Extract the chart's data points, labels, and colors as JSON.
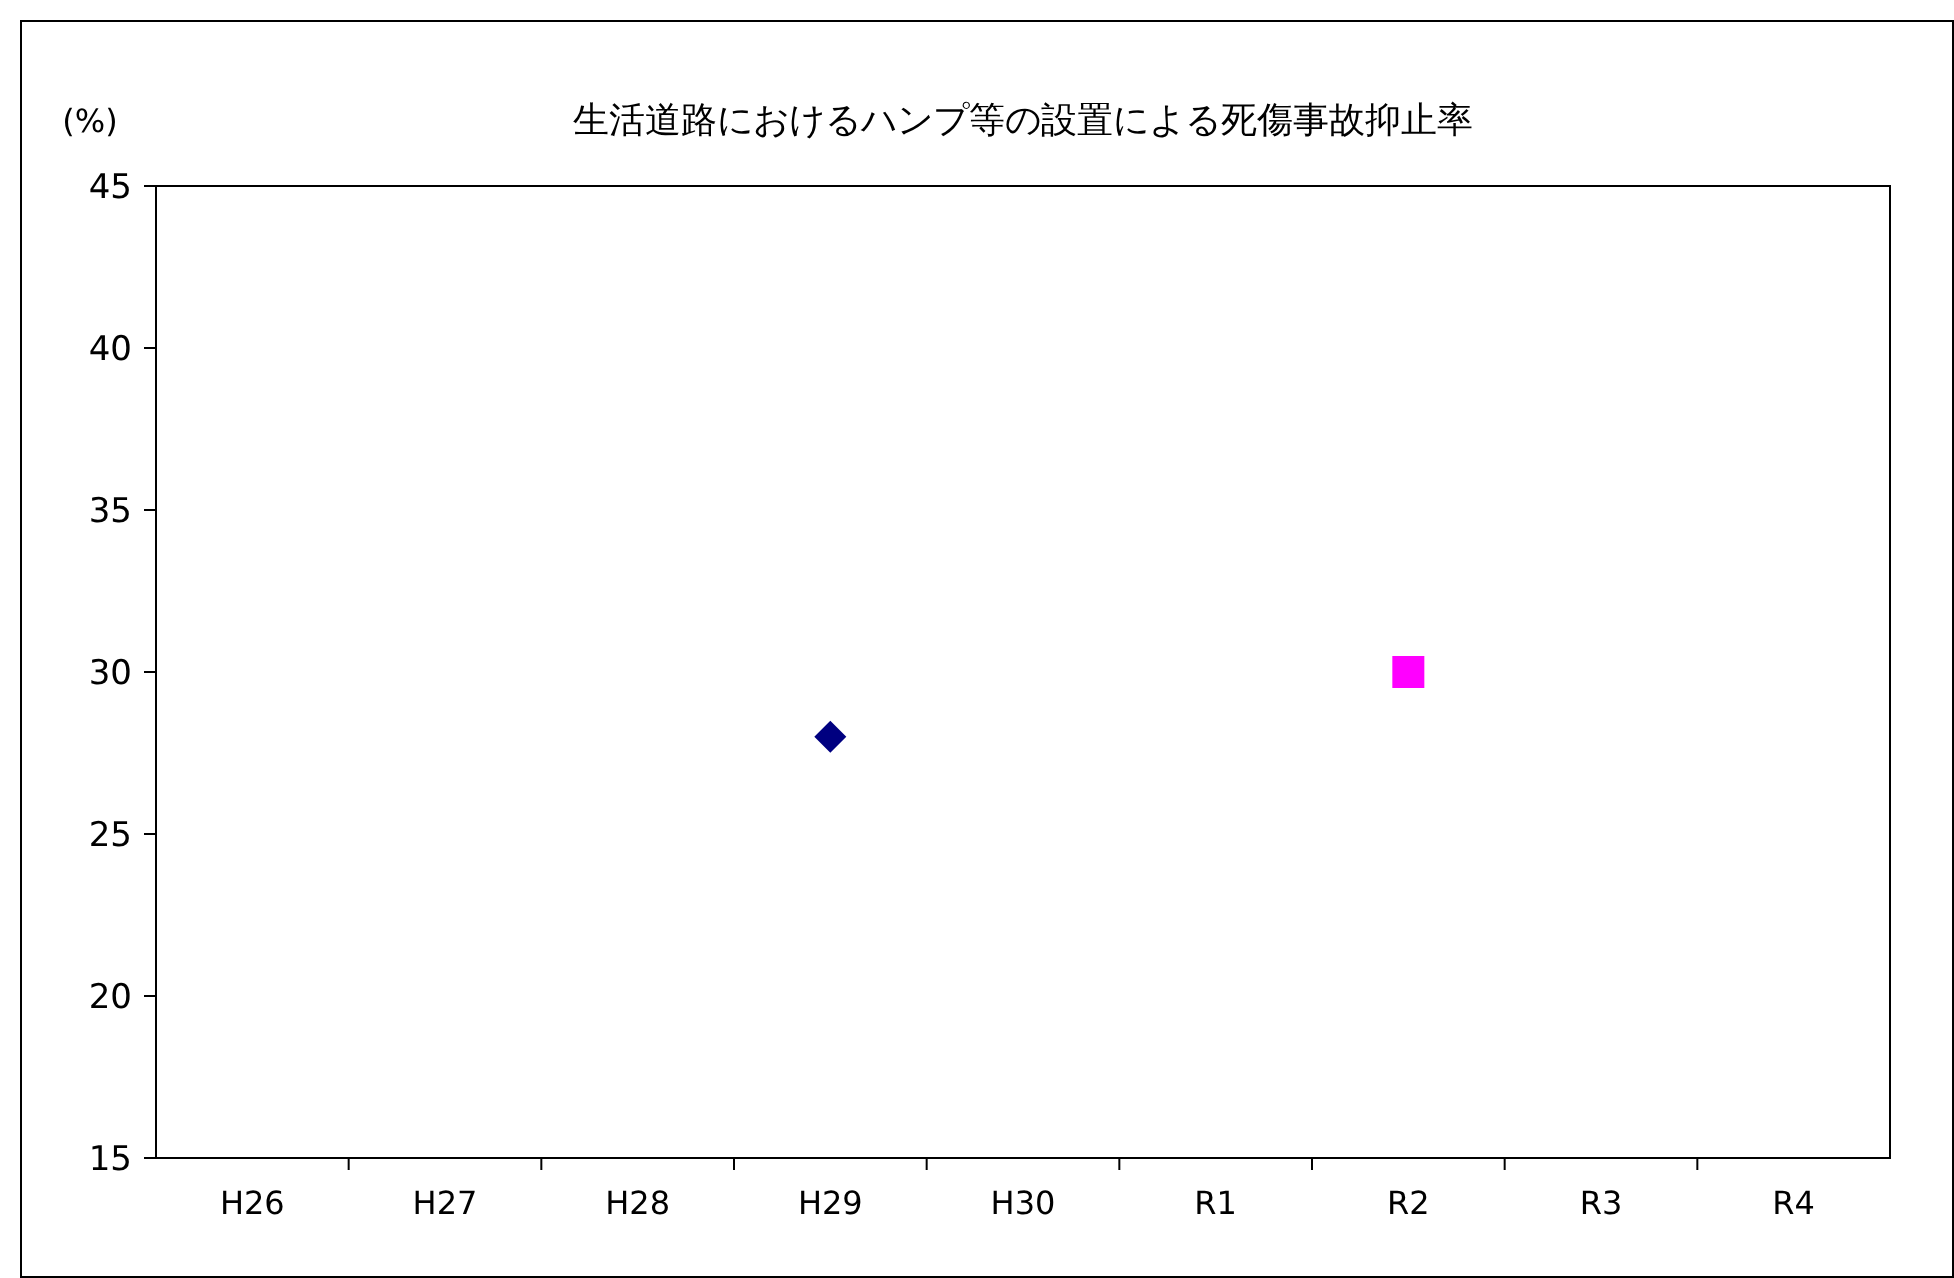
{
  "chart_data": {
    "type": "scatter",
    "title": "生活道路におけるハンプ等の設置による死傷事故抑止率",
    "ylabel": "(%)",
    "categories": [
      "H26",
      "H27",
      "H28",
      "H29",
      "H30",
      "R1",
      "R2",
      "R3",
      "R4"
    ],
    "series": [
      {
        "color": "#000080",
        "marker": "diamond",
        "values": [
          null,
          null,
          null,
          28,
          null,
          null,
          null,
          null,
          null
        ]
      },
      {
        "color": "#ff00ff",
        "marker": "square",
        "values": [
          null,
          null,
          null,
          null,
          null,
          null,
          30,
          null,
          null
        ]
      }
    ],
    "ylim": [
      15,
      45
    ],
    "yticks": [
      15,
      20,
      25,
      30,
      35,
      40,
      45
    ]
  }
}
